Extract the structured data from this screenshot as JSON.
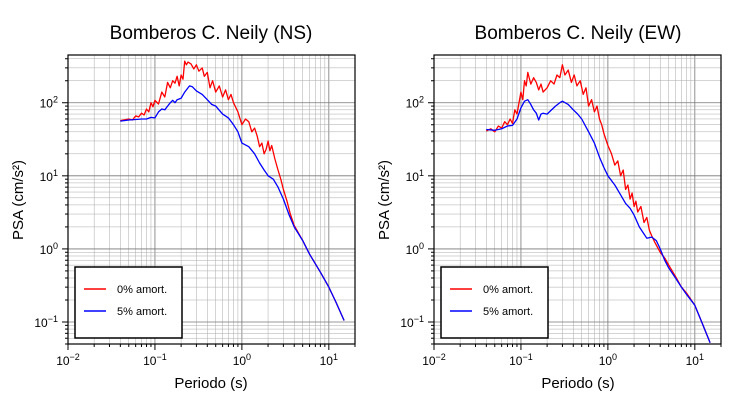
{
  "chart_data": [
    {
      "type": "line",
      "title": "Bomberos C. Neily (NS)",
      "xlabel": "Periodo (s)",
      "ylabel": "PSA (cm/s²)",
      "xscale": "log",
      "yscale": "log",
      "xlim": [
        0.01,
        20
      ],
      "ylim": [
        0.05,
        450
      ],
      "x_ticks": [
        {
          "value": 0.01,
          "base": "10",
          "exp": "−2"
        },
        {
          "value": 0.1,
          "base": "10",
          "exp": "−1"
        },
        {
          "value": 1,
          "base": "10",
          "exp": "0"
        },
        {
          "value": 10,
          "base": "10",
          "exp": "1"
        }
      ],
      "y_ticks": [
        {
          "value": 0.1,
          "base": "10",
          "exp": "−1"
        },
        {
          "value": 1,
          "base": "10",
          "exp": "0"
        },
        {
          "value": 10,
          "base": "10",
          "exp": "1"
        },
        {
          "value": 100,
          "base": "10",
          "exp": "2"
        }
      ],
      "grid": true,
      "legend_position": "bottom-left",
      "series": [
        {
          "name": "0% amort.",
          "color": "#ff0000",
          "points": [
            [
              0.04,
              57
            ],
            [
              0.05,
              60
            ],
            [
              0.055,
              58
            ],
            [
              0.06,
              66
            ],
            [
              0.065,
              64
            ],
            [
              0.07,
              72
            ],
            [
              0.075,
              68
            ],
            [
              0.08,
              82
            ],
            [
              0.085,
              75
            ],
            [
              0.09,
              100
            ],
            [
              0.095,
              88
            ],
            [
              0.1,
              108
            ],
            [
              0.11,
              96
            ],
            [
              0.12,
              140
            ],
            [
              0.13,
              120
            ],
            [
              0.14,
              190
            ],
            [
              0.15,
              160
            ],
            [
              0.16,
              200
            ],
            [
              0.17,
              185
            ],
            [
              0.18,
              230
            ],
            [
              0.19,
              170
            ],
            [
              0.2,
              240
            ],
            [
              0.21,
              210
            ],
            [
              0.22,
              370
            ],
            [
              0.23,
              330
            ],
            [
              0.24,
              360
            ],
            [
              0.26,
              340
            ],
            [
              0.28,
              290
            ],
            [
              0.3,
              330
            ],
            [
              0.32,
              270
            ],
            [
              0.35,
              300
            ],
            [
              0.37,
              230
            ],
            [
              0.4,
              260
            ],
            [
              0.43,
              160
            ],
            [
              0.46,
              200
            ],
            [
              0.5,
              140
            ],
            [
              0.55,
              170
            ],
            [
              0.6,
              120
            ],
            [
              0.65,
              150
            ],
            [
              0.7,
              110
            ],
            [
              0.75,
              130
            ],
            [
              0.8,
              100
            ],
            [
              0.9,
              75
            ],
            [
              1.0,
              50
            ],
            [
              1.1,
              60
            ],
            [
              1.2,
              55
            ],
            [
              1.3,
              40
            ],
            [
              1.4,
              45
            ],
            [
              1.5,
              35
            ],
            [
              1.6,
              25
            ],
            [
              1.7,
              28
            ],
            [
              1.8,
              20
            ],
            [
              1.9,
              23
            ],
            [
              2.0,
              30
            ],
            [
              2.1,
              22
            ],
            [
              2.2,
              26
            ],
            [
              2.4,
              17
            ],
            [
              2.6,
              12
            ],
            [
              2.8,
              9
            ],
            [
              3.0,
              6.5
            ],
            [
              3.3,
              4.5
            ],
            [
              3.6,
              3.0
            ],
            [
              4.0,
              2.1
            ],
            [
              5,
              1.3
            ],
            [
              6,
              0.85
            ],
            [
              8,
              0.48
            ],
            [
              10,
              0.3
            ],
            [
              12,
              0.19
            ],
            [
              15,
              0.105
            ]
          ]
        },
        {
          "name": "5% amort.",
          "color": "#0000ff",
          "points": [
            [
              0.04,
              56
            ],
            [
              0.05,
              58
            ],
            [
              0.06,
              59
            ],
            [
              0.07,
              60
            ],
            [
              0.08,
              60
            ],
            [
              0.09,
              63
            ],
            [
              0.1,
              62
            ],
            [
              0.11,
              75
            ],
            [
              0.12,
              82
            ],
            [
              0.13,
              80
            ],
            [
              0.14,
              90
            ],
            [
              0.15,
              100
            ],
            [
              0.16,
              108
            ],
            [
              0.17,
              100
            ],
            [
              0.18,
              110
            ],
            [
              0.2,
              115
            ],
            [
              0.22,
              140
            ],
            [
              0.25,
              170
            ],
            [
              0.27,
              165
            ],
            [
              0.3,
              145
            ],
            [
              0.35,
              130
            ],
            [
              0.4,
              110
            ],
            [
              0.45,
              95
            ],
            [
              0.5,
              90
            ],
            [
              0.6,
              70
            ],
            [
              0.7,
              62
            ],
            [
              0.8,
              50
            ],
            [
              0.9,
              40
            ],
            [
              1.0,
              28
            ],
            [
              1.2,
              25
            ],
            [
              1.4,
              20
            ],
            [
              1.6,
              15
            ],
            [
              1.8,
              12
            ],
            [
              2.0,
              10
            ],
            [
              2.3,
              9
            ],
            [
              2.6,
              7
            ],
            [
              3.0,
              4.8
            ],
            [
              3.5,
              2.9
            ],
            [
              4.0,
              2.0
            ],
            [
              5,
              1.3
            ],
            [
              6,
              0.85
            ],
            [
              8,
              0.48
            ],
            [
              10,
              0.3
            ],
            [
              12,
              0.19
            ],
            [
              15,
              0.105
            ]
          ]
        }
      ]
    },
    {
      "type": "line",
      "title": "Bomberos C. Neily (EW)",
      "xlabel": "Periodo (s)",
      "ylabel": "PSA (cm/s²)",
      "xscale": "log",
      "yscale": "log",
      "xlim": [
        0.01,
        20
      ],
      "ylim": [
        0.05,
        450
      ],
      "x_ticks": [
        {
          "value": 0.01,
          "base": "10",
          "exp": "−2"
        },
        {
          "value": 0.1,
          "base": "10",
          "exp": "−1"
        },
        {
          "value": 1,
          "base": "10",
          "exp": "0"
        },
        {
          "value": 10,
          "base": "10",
          "exp": "1"
        }
      ],
      "y_ticks": [
        {
          "value": 0.1,
          "base": "10",
          "exp": "−1"
        },
        {
          "value": 1,
          "base": "10",
          "exp": "0"
        },
        {
          "value": 10,
          "base": "10",
          "exp": "1"
        },
        {
          "value": 100,
          "base": "10",
          "exp": "2"
        }
      ],
      "grid": true,
      "legend_position": "bottom-left",
      "series": [
        {
          "name": "0% amort.",
          "color": "#ff0000",
          "points": [
            [
              0.04,
              41
            ],
            [
              0.045,
              44
            ],
            [
              0.05,
              40
            ],
            [
              0.055,
              48
            ],
            [
              0.06,
              45
            ],
            [
              0.065,
              55
            ],
            [
              0.07,
              50
            ],
            [
              0.075,
              60
            ],
            [
              0.08,
              52
            ],
            [
              0.085,
              80
            ],
            [
              0.09,
              70
            ],
            [
              0.1,
              140
            ],
            [
              0.105,
              110
            ],
            [
              0.11,
              200
            ],
            [
              0.115,
              170
            ],
            [
              0.12,
              260
            ],
            [
              0.13,
              180
            ],
            [
              0.14,
              220
            ],
            [
              0.15,
              190
            ],
            [
              0.16,
              150
            ],
            [
              0.17,
              180
            ],
            [
              0.18,
              140
            ],
            [
              0.2,
              160
            ],
            [
              0.22,
              200
            ],
            [
              0.24,
              180
            ],
            [
              0.26,
              240
            ],
            [
              0.28,
              220
            ],
            [
              0.3,
              330
            ],
            [
              0.32,
              240
            ],
            [
              0.35,
              280
            ],
            [
              0.38,
              190
            ],
            [
              0.41,
              240
            ],
            [
              0.44,
              170
            ],
            [
              0.48,
              200
            ],
            [
              0.52,
              130
            ],
            [
              0.56,
              160
            ],
            [
              0.6,
              90
            ],
            [
              0.65,
              110
            ],
            [
              0.7,
              75
            ],
            [
              0.75,
              90
            ],
            [
              0.8,
              60
            ],
            [
              0.85,
              50
            ],
            [
              0.9,
              38
            ],
            [
              1.0,
              26
            ],
            [
              1.1,
              20
            ],
            [
              1.2,
              14
            ],
            [
              1.3,
              16
            ],
            [
              1.4,
              10
            ],
            [
              1.5,
              12
            ],
            [
              1.6,
              6.5
            ],
            [
              1.7,
              7.5
            ],
            [
              1.8,
              4.8
            ],
            [
              1.9,
              5.8
            ],
            [
              2.0,
              3.8
            ],
            [
              2.1,
              4.5
            ],
            [
              2.2,
              3.2
            ],
            [
              2.4,
              3.8
            ],
            [
              2.6,
              2.3
            ],
            [
              2.8,
              2.7
            ],
            [
              3.0,
              1.8
            ],
            [
              3.2,
              1.5
            ],
            [
              3.5,
              1.2
            ],
            [
              4.0,
              0.9
            ],
            [
              4.5,
              0.75
            ],
            [
              5,
              0.6
            ],
            [
              6,
              0.42
            ],
            [
              7,
              0.3
            ],
            [
              8,
              0.25
            ],
            [
              10,
              0.17
            ],
            [
              12,
              0.1
            ],
            [
              15,
              0.052
            ]
          ]
        },
        {
          "name": "5% amort.",
          "color": "#0000ff",
          "points": [
            [
              0.04,
              43
            ],
            [
              0.05,
              42
            ],
            [
              0.06,
              44
            ],
            [
              0.07,
              48
            ],
            [
              0.08,
              49
            ],
            [
              0.09,
              60
            ],
            [
              0.1,
              85
            ],
            [
              0.11,
              105
            ],
            [
              0.12,
              110
            ],
            [
              0.13,
              95
            ],
            [
              0.14,
              80
            ],
            [
              0.15,
              72
            ],
            [
              0.16,
              58
            ],
            [
              0.17,
              70
            ],
            [
              0.18,
              72
            ],
            [
              0.2,
              70
            ],
            [
              0.22,
              78
            ],
            [
              0.25,
              90
            ],
            [
              0.28,
              100
            ],
            [
              0.3,
              105
            ],
            [
              0.35,
              95
            ],
            [
              0.4,
              80
            ],
            [
              0.45,
              70
            ],
            [
              0.5,
              60
            ],
            [
              0.6,
              40
            ],
            [
              0.7,
              28
            ],
            [
              0.8,
              18
            ],
            [
              0.9,
              13
            ],
            [
              1.0,
              10
            ],
            [
              1.2,
              7.5
            ],
            [
              1.4,
              5.5
            ],
            [
              1.6,
              4.2
            ],
            [
              1.8,
              3.6
            ],
            [
              2.0,
              2.9
            ],
            [
              2.3,
              2.0
            ],
            [
              2.6,
              1.6
            ],
            [
              2.8,
              1.4
            ],
            [
              3.2,
              1.45
            ],
            [
              3.6,
              1.3
            ],
            [
              4.0,
              1.0
            ],
            [
              4.5,
              0.7
            ],
            [
              5,
              0.55
            ],
            [
              6,
              0.4
            ],
            [
              7,
              0.3
            ],
            [
              8,
              0.24
            ],
            [
              10,
              0.17
            ],
            [
              12,
              0.1
            ],
            [
              15,
              0.052
            ]
          ]
        }
      ]
    }
  ]
}
